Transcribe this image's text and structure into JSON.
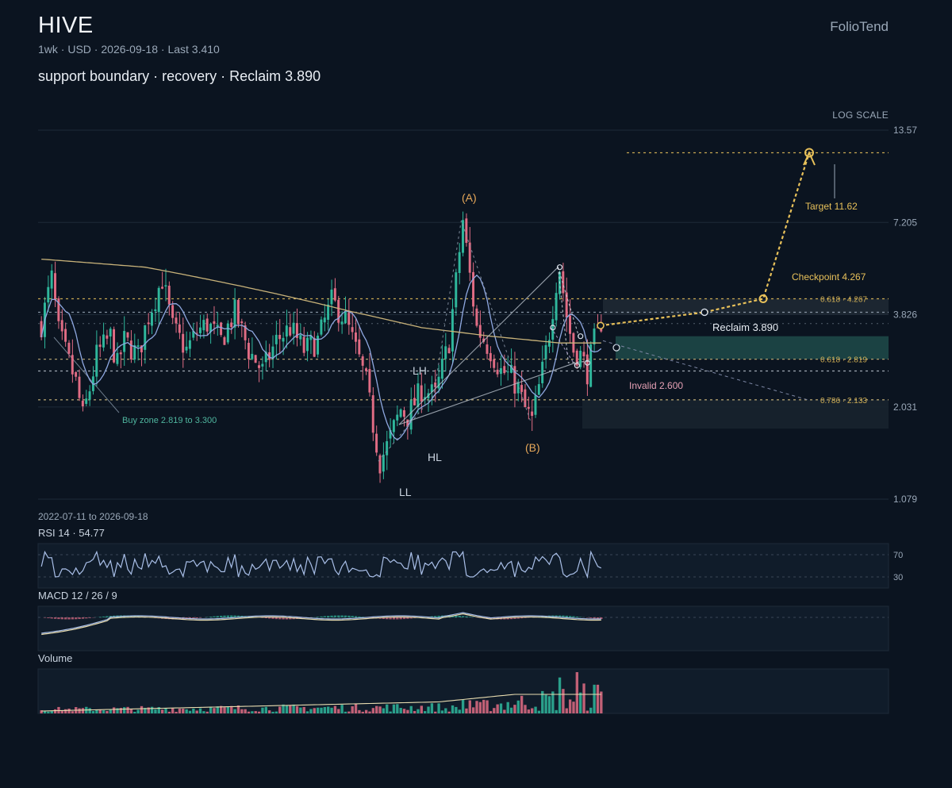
{
  "header": {
    "symbol": "HIVE",
    "brand": "FolioTend",
    "interval": "1wk",
    "currency": "USD",
    "date": "2026-09-18",
    "last_label": "Last 3.410",
    "headline": "support boundary · recovery · Reclaim 3.890",
    "scale_label": "LOG SCALE"
  },
  "chart_data": {
    "type": "candlestick",
    "scale": "log",
    "ylim": [
      1.079,
      13.57
    ],
    "y_ticks": [
      "13.57",
      "7.205",
      "3.826",
      "2.031",
      "1.079"
    ],
    "range_label": "2022-07-11 to 2026-09-18",
    "last": 3.41,
    "anchors": [
      [
        0,
        3.6
      ],
      [
        3,
        4.9
      ],
      [
        5,
        3.4
      ],
      [
        10,
        2.4
      ],
      [
        12,
        1.9
      ],
      [
        14,
        2.3
      ],
      [
        16,
        2.9
      ],
      [
        20,
        3.3
      ],
      [
        22,
        2.7
      ],
      [
        24,
        3.2
      ],
      [
        28,
        2.9
      ],
      [
        31,
        3.8
      ],
      [
        35,
        4.9
      ],
      [
        38,
        3.5
      ],
      [
        42,
        3.0
      ],
      [
        45,
        3.4
      ],
      [
        48,
        3.6
      ],
      [
        52,
        3.2
      ],
      [
        56,
        3.9
      ],
      [
        60,
        3.0
      ],
      [
        64,
        2.6
      ],
      [
        68,
        3.2
      ],
      [
        72,
        3.5
      ],
      [
        76,
        3.0
      ],
      [
        80,
        3.2
      ],
      [
        84,
        4.2
      ],
      [
        88,
        3.7
      ],
      [
        92,
        2.8
      ],
      [
        94,
        2.4
      ],
      [
        96,
        1.8
      ],
      [
        98,
        1.4
      ],
      [
        100,
        1.55
      ],
      [
        104,
        2.0
      ],
      [
        106,
        1.9
      ],
      [
        110,
        2.3
      ],
      [
        114,
        2.2
      ],
      [
        118,
        3.2
      ],
      [
        120,
        4.8
      ],
      [
        122,
        7.3
      ],
      [
        124,
        5.0
      ],
      [
        126,
        3.5
      ],
      [
        130,
        3.0
      ],
      [
        133,
        2.6
      ],
      [
        136,
        2.5
      ],
      [
        138,
        2.3
      ],
      [
        140,
        2.0
      ],
      [
        142,
        1.85
      ],
      [
        145,
        2.6
      ],
      [
        147,
        3.4
      ],
      [
        149,
        4.8
      ],
      [
        150,
        5.3
      ],
      [
        152,
        3.8
      ],
      [
        154,
        3.0
      ],
      [
        156,
        2.9
      ],
      [
        158,
        2.6
      ],
      [
        160,
        3.2
      ],
      [
        162,
        3.41
      ]
    ],
    "moving_averages": [
      {
        "name": "",
        "color": "#8fa8e0"
      },
      {
        "name": "",
        "color": "#c9b37a"
      }
    ],
    "annotations": {
      "swings": [
        {
          "label": "(A)",
          "x": 122,
          "y": 7.6
        },
        {
          "label": "(B)",
          "x": 142,
          "y": 1.8
        },
        {
          "label": "LH",
          "x": 110,
          "y": 2.45
        },
        {
          "label": "HL",
          "x": 110,
          "y": 1.62
        },
        {
          "label": "LL",
          "x": 98,
          "y": 1.36
        }
      ],
      "fib_levels": [
        {
          "label": "0.618 · 4.267",
          "value": 4.267
        },
        {
          "label": "0.618 · 2.819",
          "value": 2.819
        },
        {
          "label": "0.786 · 2.133",
          "value": 2.133
        }
      ],
      "target_label": "Target 11.62",
      "target_value": 11.62,
      "checkpoint_label": "Checkpoint 4.267",
      "checkpoint_value": 4.267,
      "reclaim_label": "Reclaim 3.890",
      "reclaim_value": 3.89,
      "invalid_label": "Invalid 2.600",
      "invalid_value": 2.6,
      "buy_zone_label": "Buy zone 2.819 to 3.300",
      "buy_zone": [
        2.819,
        3.3
      ]
    },
    "rsi": {
      "label": "RSI 14 · 54.77",
      "value": 54.77,
      "levels": [
        "70",
        "30"
      ]
    },
    "macd": {
      "label": "MACD 12 / 26 / 9"
    },
    "volume": {
      "label": "Volume"
    }
  },
  "colors": {
    "background": "#0b1420",
    "up": "#2fb79c",
    "down": "#e06c84",
    "accent": "#e8c15a",
    "grid": "#1e2a38"
  }
}
